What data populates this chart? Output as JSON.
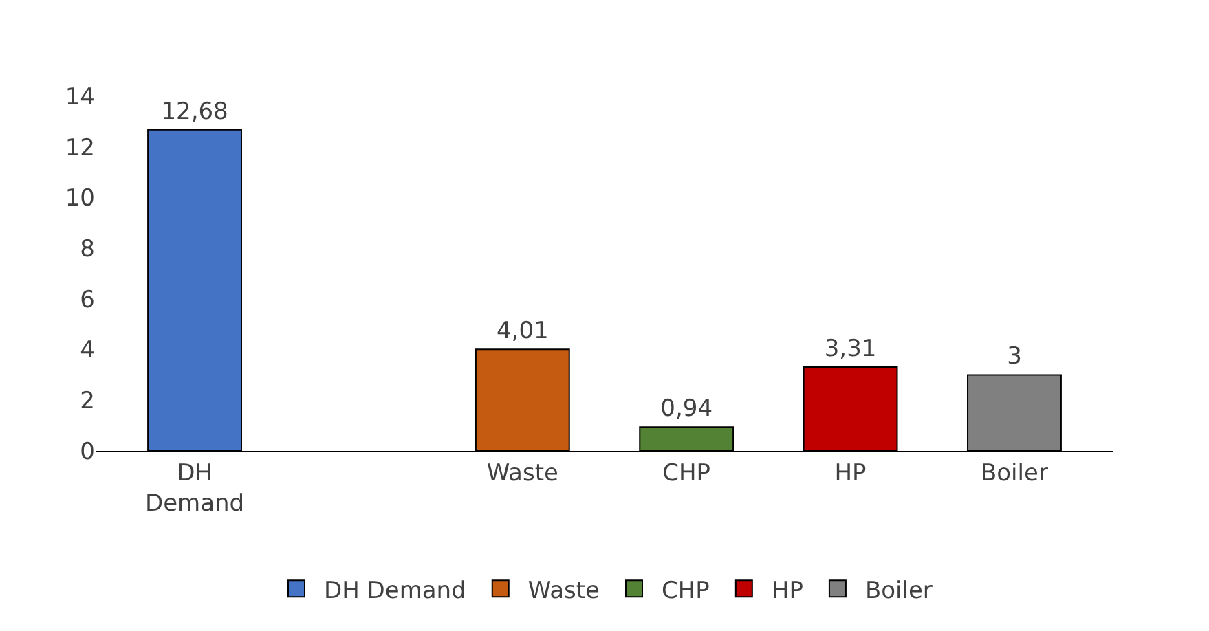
{
  "chart_data": {
    "type": "bar",
    "categories": [
      "DH Demand",
      null,
      "Waste",
      "CHP",
      "HP",
      "Boiler"
    ],
    "series": [
      {
        "name": "DH Demand",
        "color": "#4472c4",
        "values": [
          12.68,
          null,
          null,
          null,
          null,
          null
        ],
        "value_labels": [
          "12,68",
          null,
          null,
          null,
          null,
          null
        ]
      },
      {
        "name": "Waste",
        "color": "#c55a11",
        "values": [
          null,
          null,
          4.01,
          null,
          null,
          null
        ],
        "value_labels": [
          null,
          null,
          "4,01",
          null,
          null,
          null
        ]
      },
      {
        "name": "CHP",
        "color": "#548235",
        "values": [
          null,
          null,
          null,
          0.94,
          null,
          null
        ],
        "value_labels": [
          null,
          null,
          null,
          "0,94",
          null,
          null
        ]
      },
      {
        "name": "HP",
        "color": "#c00000",
        "values": [
          null,
          null,
          null,
          null,
          3.31,
          null
        ],
        "value_labels": [
          null,
          null,
          null,
          null,
          "3,31",
          null
        ]
      },
      {
        "name": "Boiler",
        "color": "#808080",
        "values": [
          null,
          null,
          null,
          null,
          null,
          3
        ],
        "value_labels": [
          null,
          null,
          null,
          null,
          null,
          "3"
        ]
      }
    ],
    "ylim": [
      0,
      14
    ],
    "yticks": [
      0,
      2,
      4,
      6,
      8,
      10,
      12,
      14
    ],
    "legend": "bottom"
  }
}
